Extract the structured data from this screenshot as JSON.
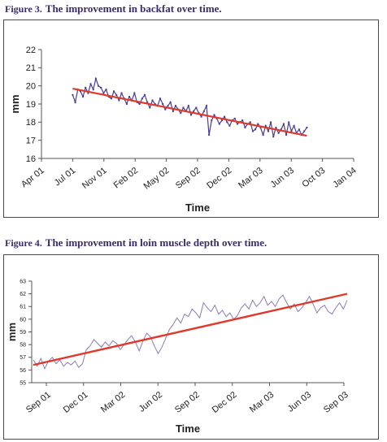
{
  "fig3": {
    "label": "Figure 3.",
    "title": "The improvement in backfat over time."
  },
  "fig4": {
    "label": "Figure 4.",
    "title": "The improvement in loin muscle depth over time."
  },
  "colors": {
    "data_line": "#4a3a9a",
    "trend_line": "#e0392b",
    "caption": "#3b2a6e"
  },
  "chart_data": [
    {
      "type": "line",
      "xlabel": "Time",
      "ylabel": "mm",
      "ylim": [
        16,
        22
      ],
      "yticks": [
        "16",
        "17",
        "18",
        "19",
        "20",
        "21",
        "22"
      ],
      "xticks": [
        "Apr 01",
        "Jul 01",
        "Nov 01",
        "Feb 02",
        "May 02",
        "Sep 02",
        "Dec 02",
        "Mar 03",
        "Jun 03",
        "Oct 03",
        "Jan 04"
      ],
      "grid": false,
      "series": [
        {
          "kind": "weekly",
          "x_range": [
            "Jul 01",
            "Sep 03"
          ],
          "values": [
            19.5,
            19.1,
            19.8,
            19.7,
            19.4,
            19.9,
            19.6,
            20.1,
            19.8,
            20.4,
            20.0,
            19.9,
            19.6,
            19.8,
            19.4,
            19.3,
            19.7,
            19.5,
            19.2,
            19.6,
            19.3,
            19.0,
            19.4,
            19.2,
            19.6,
            19.1,
            19.0,
            19.3,
            19.5,
            19.1,
            18.8,
            19.2,
            19.0,
            18.9,
            19.3,
            19.0,
            18.7,
            18.9,
            19.1,
            18.6,
            18.9,
            18.7,
            18.5,
            18.8,
            18.6,
            18.9,
            18.4,
            18.6,
            18.8,
            18.5,
            18.3,
            18.6,
            18.9,
            17.3,
            18.1,
            18.4,
            18.2,
            17.9,
            18.1,
            18.3,
            18.0,
            17.8,
            18.1,
            18.2,
            17.9,
            18.0,
            18.1,
            17.7,
            17.9,
            18.0,
            17.5,
            17.6,
            17.9,
            17.7,
            17.3,
            17.8,
            17.5,
            18.0,
            17.2,
            17.7,
            17.4,
            17.6,
            17.9,
            17.3,
            18.0,
            17.5,
            17.8,
            17.4,
            17.6,
            17.3,
            17.5,
            17.7
          ]
        },
        {
          "kind": "trend",
          "x_range": [
            "Jul 01",
            "Sep 03"
          ],
          "values": [
            19.85,
            17.25
          ]
        }
      ]
    },
    {
      "type": "line",
      "xlabel": "Time",
      "ylabel": "mm",
      "ylim": [
        55,
        63
      ],
      "yticks": [
        "55",
        "56",
        "57",
        "58",
        "59",
        "60",
        "61",
        "62",
        "63"
      ],
      "xticks": [
        "Sep 01",
        "Dec 01",
        "Mar 02",
        "Jun 02",
        "Sep 02",
        "Dec 02",
        "Mar 03",
        "Jun 03",
        "Sep 03"
      ],
      "grid": false,
      "series": [
        {
          "kind": "weekly",
          "x_range": [
            "Aug 01",
            "Sep 03"
          ],
          "values": [
            56.8,
            56.3,
            56.9,
            56.1,
            56.7,
            57.0,
            56.5,
            56.8,
            56.3,
            56.6,
            56.4,
            56.7,
            56.2,
            56.5,
            57.6,
            57.9,
            58.4,
            58.1,
            57.8,
            58.2,
            57.9,
            58.3,
            58.1,
            57.6,
            58.0,
            58.4,
            58.7,
            58.2,
            57.5,
            58.3,
            58.9,
            58.6,
            57.9,
            57.3,
            57.8,
            58.5,
            59.2,
            59.6,
            60.1,
            59.7,
            60.4,
            60.2,
            60.8,
            60.5,
            60.1,
            61.3,
            60.9,
            60.6,
            61.1,
            60.4,
            60.7,
            60.2,
            60.5,
            60.0,
            60.3,
            60.9,
            61.2,
            60.8,
            61.5,
            61.0,
            61.3,
            61.8,
            61.1,
            61.4,
            61.0,
            61.6,
            61.9,
            61.3,
            60.8,
            61.2,
            60.6,
            60.9,
            61.3,
            61.8,
            61.2,
            60.5,
            60.9,
            61.1,
            60.6,
            60.4,
            60.9,
            61.3,
            60.8,
            61.5
          ]
        },
        {
          "kind": "trend",
          "x_range": [
            "Aug 01",
            "Sep 03"
          ],
          "values": [
            56.4,
            62.0
          ]
        }
      ]
    }
  ]
}
